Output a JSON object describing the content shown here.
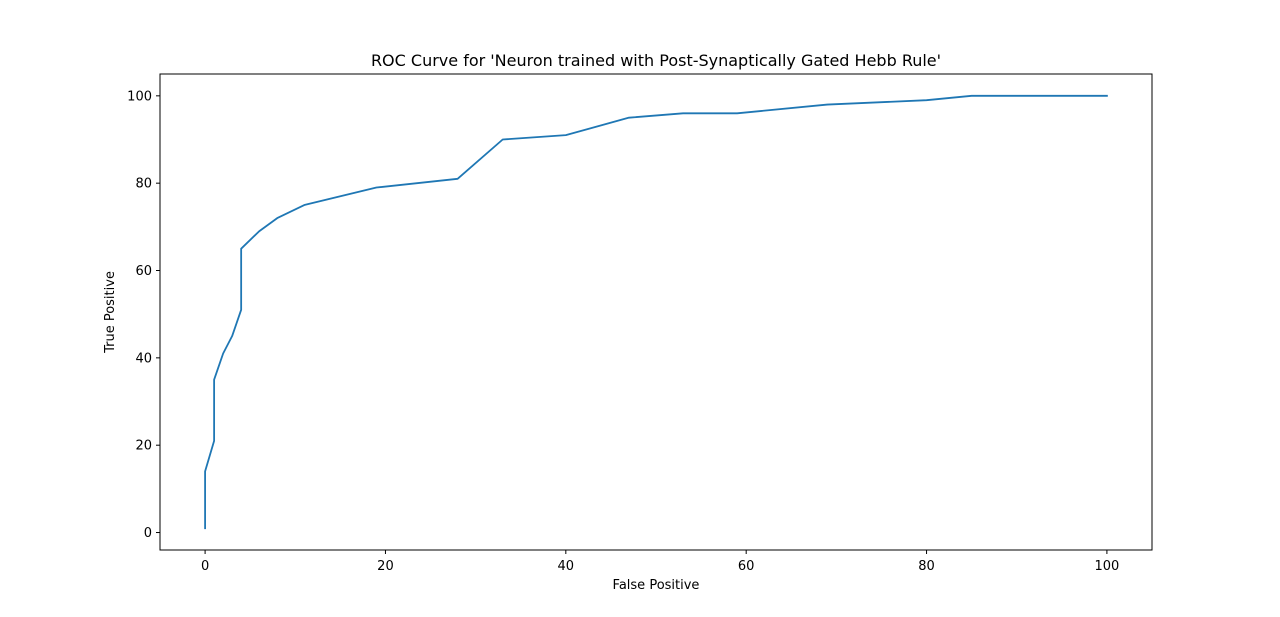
{
  "chart_data": {
    "type": "line",
    "title": "ROC Curve for 'Neuron trained with Post-Synaptically Gated Hebb Rule'",
    "xlabel": "False Positive",
    "ylabel": "True Positive",
    "xlim": [
      -5,
      105
    ],
    "ylim": [
      -4,
      105
    ],
    "xticks": [
      0,
      20,
      40,
      60,
      80,
      100
    ],
    "yticks": [
      0,
      20,
      40,
      60,
      80,
      100
    ],
    "xtick_labels": [
      "0",
      "20",
      "40",
      "60",
      "80",
      "100"
    ],
    "ytick_labels": [
      "0",
      "20",
      "40",
      "60",
      "80",
      "100"
    ],
    "grid": false,
    "series": [
      {
        "color": "#1f77b4",
        "x": [
          0,
          0,
          1,
          1,
          2,
          3,
          4,
          4,
          6,
          8,
          11,
          19,
          28,
          33,
          40,
          47,
          53,
          59,
          69,
          80,
          85,
          100
        ],
        "y": [
          1,
          14,
          21,
          35,
          41,
          45,
          51,
          65,
          69,
          72,
          75,
          79,
          81,
          90,
          91,
          95,
          96,
          96,
          98,
          99,
          100,
          100
        ]
      }
    ]
  }
}
